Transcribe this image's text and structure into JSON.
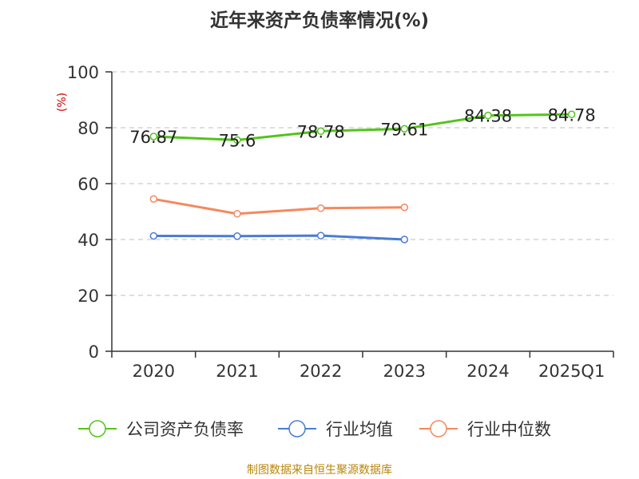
{
  "chart_data": {
    "type": "line",
    "title": "近年来资产负债率情况(%)",
    "ylabel": "(%)",
    "xlabel": "",
    "categories": [
      "2020",
      "2021",
      "2022",
      "2023",
      "2024",
      "2025Q1"
    ],
    "ylim": [
      0,
      100
    ],
    "yticks": [
      0,
      20,
      40,
      60,
      80,
      100
    ],
    "grid": "horizontal-dashed",
    "legend_position": "bottom",
    "series": [
      {
        "name": "公司资产负债率",
        "color": "#52c41a",
        "values": [
          76.87,
          75.6,
          78.78,
          79.61,
          84.38,
          84.78
        ],
        "labels": [
          "76.87",
          "75.6",
          "78.78",
          "79.61",
          "84.38",
          "84.78"
        ]
      },
      {
        "name": "行业均值",
        "color": "#4a7bd8",
        "values": [
          41.3,
          41.2,
          41.4,
          40.0,
          null,
          null
        ]
      },
      {
        "name": "行业中位数",
        "color": "#f4895f",
        "values": [
          54.5,
          49.2,
          51.2,
          51.5,
          null,
          null
        ]
      }
    ]
  },
  "source_text": "制图数据来自恒生聚源数据库"
}
